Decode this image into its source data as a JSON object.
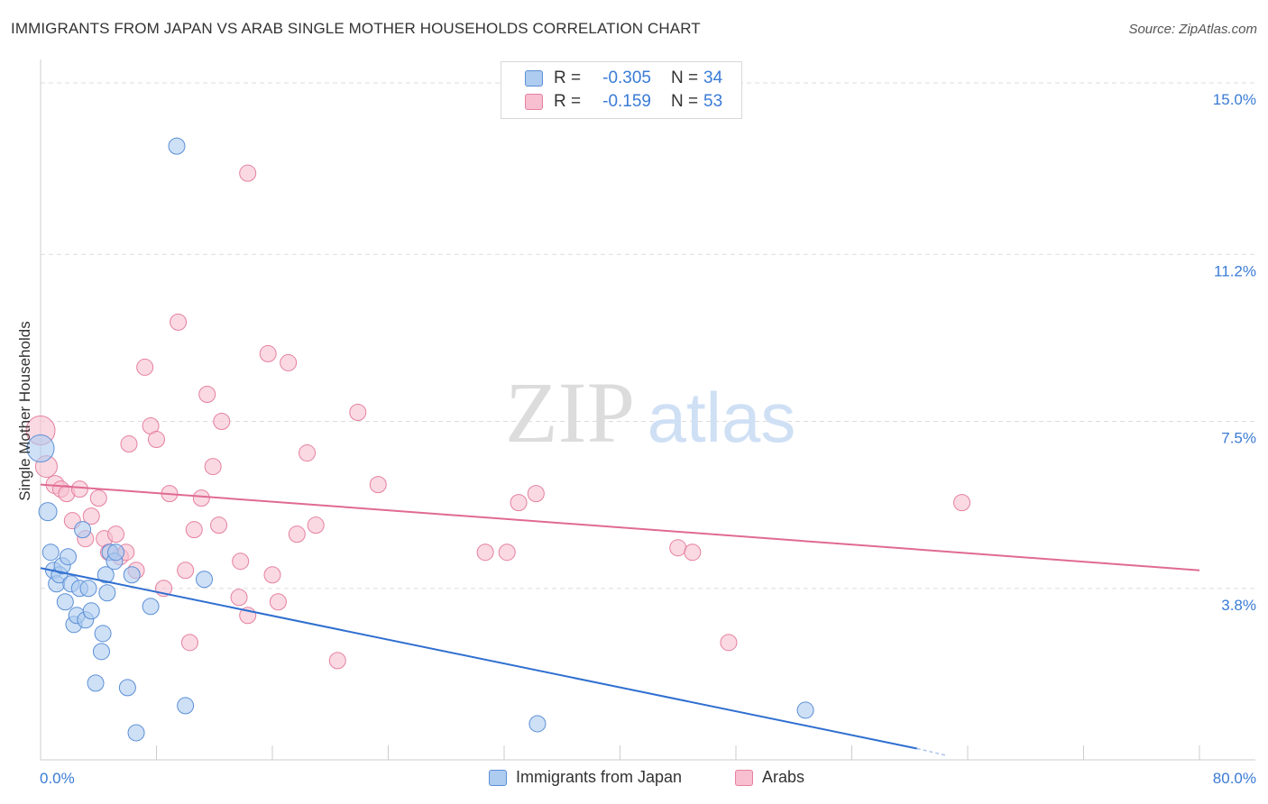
{
  "title": "IMMIGRANTS FROM JAPAN VS ARAB SINGLE MOTHER HOUSEHOLDS CORRELATION CHART",
  "source": "Source: ZipAtlas.com",
  "watermark": {
    "zip": "ZIP",
    "atlas": "atlas"
  },
  "colors": {
    "japan_fill": "#aecbf0",
    "japan_stroke": "#5b8fd6",
    "japan_line": "#2f6fd0",
    "arab_fill": "#f7bfd0",
    "arab_stroke": "#e5809f",
    "arab_line": "#e06a93",
    "axis_text": "#3a7bd5",
    "grid": "#dddddd"
  },
  "legend": {
    "japan": {
      "r_label": "R =",
      "r_value": "-0.305",
      "n_label": "N =",
      "n_value": "34"
    },
    "arabs": {
      "r_label": "R =",
      "r_value": "-0.159",
      "n_label": "N =",
      "n_value": "53"
    }
  },
  "bottom_legend": {
    "japan": "Immigrants from Japan",
    "arabs": "Arabs"
  },
  "chart_data": {
    "type": "scatter",
    "title": "IMMIGRANTS FROM JAPAN VS ARAB SINGLE MOTHER HOUSEHOLDS CORRELATION CHART",
    "ylabel": "Single Mother Households",
    "xlim": [
      0,
      80
    ],
    "ylim": [
      0,
      15.4
    ],
    "x_tick_labels": [
      "0.0%",
      "80.0%"
    ],
    "y_ticks": [
      3.8,
      7.5,
      11.2,
      15.0
    ],
    "y_tick_labels": [
      "3.8%",
      "7.5%",
      "11.2%",
      "15.0%"
    ],
    "series": [
      {
        "name": "Immigrants from Japan",
        "points": [
          [
            0.0,
            6.9,
            15
          ],
          [
            0.5,
            5.5,
            10
          ],
          [
            0.7,
            4.6,
            9
          ],
          [
            0.9,
            4.2,
            9
          ],
          [
            1.1,
            3.9,
            9
          ],
          [
            1.3,
            4.1,
            9
          ],
          [
            1.5,
            4.3,
            9
          ],
          [
            1.7,
            3.5,
            9
          ],
          [
            1.9,
            4.5,
            9
          ],
          [
            2.1,
            3.9,
            9
          ],
          [
            2.3,
            3.0,
            9
          ],
          [
            2.5,
            3.2,
            9
          ],
          [
            2.7,
            3.8,
            9
          ],
          [
            2.9,
            5.1,
            9
          ],
          [
            3.1,
            3.1,
            9
          ],
          [
            3.3,
            3.8,
            9
          ],
          [
            3.5,
            3.3,
            9
          ],
          [
            3.8,
            1.7,
            9
          ],
          [
            4.2,
            2.4,
            9
          ],
          [
            4.3,
            2.8,
            9
          ],
          [
            4.5,
            4.1,
            9
          ],
          [
            4.8,
            4.6,
            9
          ],
          [
            5.1,
            4.4,
            9
          ],
          [
            5.2,
            4.6,
            9
          ],
          [
            6.0,
            1.6,
            9
          ],
          [
            6.3,
            4.1,
            9
          ],
          [
            6.6,
            0.6,
            9
          ],
          [
            7.6,
            3.4,
            9
          ],
          [
            9.4,
            13.6,
            9
          ],
          [
            10.0,
            1.2,
            9
          ],
          [
            11.3,
            4.0,
            9
          ],
          [
            34.3,
            0.8,
            9
          ],
          [
            52.8,
            1.1,
            9
          ],
          [
            4.6,
            3.7,
            9
          ]
        ]
      },
      {
        "name": "Arabs",
        "points": [
          [
            0.0,
            7.3,
            16
          ],
          [
            0.4,
            6.5,
            12
          ],
          [
            1.0,
            6.1,
            10
          ],
          [
            1.4,
            6.0,
            9
          ],
          [
            1.8,
            5.9,
            9
          ],
          [
            2.2,
            5.3,
            9
          ],
          [
            2.7,
            6.0,
            9
          ],
          [
            3.1,
            4.9,
            9
          ],
          [
            3.5,
            5.4,
            9
          ],
          [
            4.0,
            5.8,
            9
          ],
          [
            4.4,
            4.9,
            9
          ],
          [
            4.7,
            4.6,
            9
          ],
          [
            5.2,
            5.0,
            9
          ],
          [
            5.5,
            4.5,
            9
          ],
          [
            5.9,
            4.6,
            9
          ],
          [
            6.1,
            7.0,
            9
          ],
          [
            6.6,
            4.2,
            9
          ],
          [
            7.2,
            8.7,
            9
          ],
          [
            7.6,
            7.4,
            9
          ],
          [
            8.0,
            7.1,
            9
          ],
          [
            8.5,
            3.8,
            9
          ],
          [
            8.9,
            5.9,
            9
          ],
          [
            9.5,
            9.7,
            9
          ],
          [
            10.0,
            4.2,
            9
          ],
          [
            10.3,
            2.6,
            9
          ],
          [
            10.6,
            5.1,
            9
          ],
          [
            11.1,
            5.8,
            9
          ],
          [
            11.5,
            8.1,
            9
          ],
          [
            11.9,
            6.5,
            9
          ],
          [
            12.3,
            5.2,
            9
          ],
          [
            12.5,
            7.5,
            9
          ],
          [
            13.7,
            3.6,
            9
          ],
          [
            13.8,
            4.4,
            9
          ],
          [
            14.3,
            3.2,
            9
          ],
          [
            14.3,
            13.0,
            9
          ],
          [
            15.7,
            9.0,
            9
          ],
          [
            16.0,
            4.1,
            9
          ],
          [
            16.4,
            3.5,
            9
          ],
          [
            17.1,
            8.8,
            9
          ],
          [
            17.7,
            5.0,
            9
          ],
          [
            18.4,
            6.8,
            9
          ],
          [
            19.0,
            5.2,
            9
          ],
          [
            20.5,
            2.2,
            9
          ],
          [
            21.9,
            7.7,
            9
          ],
          [
            23.3,
            6.1,
            9
          ],
          [
            30.7,
            4.6,
            9
          ],
          [
            32.2,
            4.6,
            9
          ],
          [
            33.0,
            5.7,
            9
          ],
          [
            34.2,
            5.9,
            9
          ],
          [
            44.0,
            4.7,
            9
          ],
          [
            45.0,
            4.6,
            9
          ],
          [
            47.5,
            2.6,
            9
          ],
          [
            63.6,
            5.7,
            9
          ]
        ]
      }
    ],
    "trend_lines": [
      {
        "name": "Immigrants from Japan",
        "x": [
          0,
          60.5
        ],
        "y": [
          4.25,
          0.25
        ],
        "dashed_extension_to": [
          62.5,
          0.1
        ]
      },
      {
        "name": "Arabs",
        "x": [
          0,
          80
        ],
        "y": [
          6.1,
          4.2
        ]
      }
    ]
  }
}
